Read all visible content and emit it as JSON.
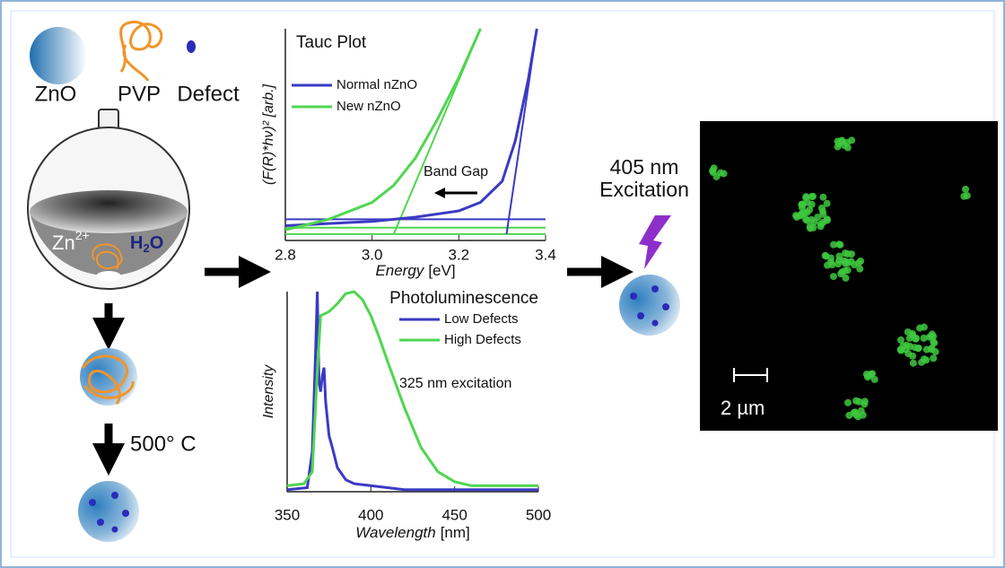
{
  "legend_items": {
    "zno": "ZnO",
    "pvp": "PVP",
    "defect": "Defect"
  },
  "flask": {
    "ion": {
      "base": "Zn",
      "sup": "2+"
    },
    "solvent": {
      "base": "H",
      "sub": "2",
      "rest": "O"
    }
  },
  "anneal_label": "500° C",
  "chart_data": [
    {
      "type": "line",
      "title": "Tauc Plot",
      "x_label": {
        "main": "Energy",
        "unit": "[eV]"
      },
      "y_label": "(F(R)*hν)² [arb.]",
      "xlim": [
        2.8,
        3.4
      ],
      "ylim": [
        0,
        1
      ],
      "xticks": [
        2.8,
        {
          "value": 3,
          "label": "3.0"
        },
        3.2,
        3.4
      ],
      "legend": "upper left",
      "series": [
        {
          "name": "Normal nZnO",
          "color": "#3a3ac4",
          "x": [
            2.8,
            2.9,
            3.0,
            3.1,
            3.2,
            3.25,
            3.3,
            3.33,
            3.36,
            3.38
          ],
          "values": [
            0.07,
            0.08,
            0.09,
            0.11,
            0.14,
            0.18,
            0.28,
            0.47,
            0.76,
            1.0
          ]
        },
        {
          "name": "New nZnO",
          "color": "#4fd64f",
          "x": [
            2.8,
            2.9,
            3.0,
            3.05,
            3.1,
            3.15,
            3.2,
            3.25
          ],
          "values": [
            0.05,
            0.1,
            0.18,
            0.26,
            0.39,
            0.57,
            0.77,
            1.0
          ]
        }
      ],
      "fit_lines": [
        {
          "color": "#3a3ac4",
          "x": [
            2.8,
            3.4
          ],
          "values": [
            0.1,
            0.1
          ]
        },
        {
          "color": "#4fd64f",
          "x": [
            2.8,
            3.4
          ],
          "values": [
            0.06,
            0.06
          ]
        },
        {
          "color": "#4fd64f",
          "x": [
            2.8,
            3.4
          ],
          "values": [
            0.03,
            0.03
          ]
        },
        {
          "color": "#3a3ac4",
          "x": [
            3.31,
            3.38
          ],
          "values": [
            0.03,
            1.0
          ]
        },
        {
          "color": "#4fd64f",
          "x": [
            3.05,
            3.25
          ],
          "values": [
            0.03,
            1.0
          ]
        }
      ],
      "annotation": "Band Gap"
    },
    {
      "type": "line",
      "title": "Photoluminescence",
      "x_label": {
        "main": "Wavelength",
        "unit": "[nm]"
      },
      "y_label": "Intensity",
      "xlim": [
        350,
        500
      ],
      "ylim": [
        0,
        1
      ],
      "xticks": [
        350,
        400,
        450,
        500
      ],
      "legend": "upper right",
      "series": [
        {
          "name": "Low Defects",
          "color": "#3a3ac4",
          "x": [
            350,
            362,
            365,
            367,
            368,
            369,
            370,
            371,
            372,
            373,
            375,
            377,
            380,
            385,
            390,
            400,
            420,
            450,
            500
          ],
          "values": [
            0.01,
            0.02,
            0.2,
            0.7,
            1.0,
            0.55,
            0.5,
            0.58,
            0.62,
            0.45,
            0.28,
            0.22,
            0.12,
            0.06,
            0.04,
            0.03,
            0.01,
            0.01,
            0.01
          ]
        },
        {
          "name": "High Defects",
          "color": "#4fd64f",
          "x": [
            350,
            360,
            365,
            368,
            370,
            375,
            380,
            385,
            390,
            395,
            400,
            405,
            410,
            420,
            430,
            440,
            450,
            460,
            470,
            500
          ],
          "values": [
            0.03,
            0.04,
            0.1,
            0.6,
            0.88,
            0.9,
            0.94,
            0.99,
            1.0,
            0.96,
            0.88,
            0.77,
            0.65,
            0.42,
            0.22,
            0.1,
            0.05,
            0.03,
            0.03,
            0.03
          ]
        }
      ],
      "annotation": "325 nm excitation"
    }
  ],
  "excitation_label": {
    "line1": "405 nm",
    "line2": "Excitation"
  },
  "scale_bar_label": "2 µm"
}
